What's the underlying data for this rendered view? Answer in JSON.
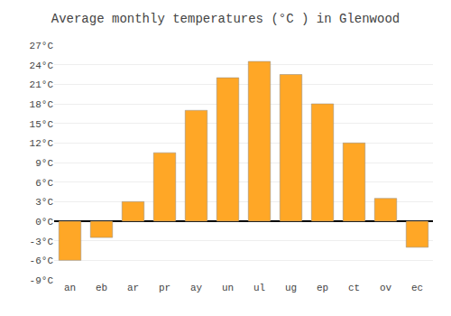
{
  "chart_data": {
    "type": "bar",
    "title": "Average monthly temperatures (°C ) in Glenwood",
    "categories": [
      "an",
      "eb",
      "ar",
      "pr",
      "ay",
      "un",
      "ul",
      "ug",
      "ep",
      "ct",
      "ov",
      "ec"
    ],
    "values": [
      -6.0,
      -2.5,
      3.0,
      10.5,
      17.0,
      22.0,
      24.5,
      22.5,
      18.0,
      12.0,
      3.5,
      -4.0
    ],
    "color": "#FFA726",
    "ylim": [
      -9,
      27
    ],
    "yticks": [
      {
        "value": -9,
        "label": "-9°C"
      },
      {
        "value": -6,
        "label": "-6°C"
      },
      {
        "value": -3,
        "label": "-3°C"
      },
      {
        "value": 0,
        "label": "0°C"
      },
      {
        "value": 3,
        "label": "3°C"
      },
      {
        "value": 6,
        "label": "6°C"
      },
      {
        "value": 9,
        "label": "9°C"
      },
      {
        "value": 12,
        "label": "12°C"
      },
      {
        "value": 15,
        "label": "15°C"
      },
      {
        "value": 18,
        "label": "18°C"
      },
      {
        "value": 21,
        "label": "21°C"
      },
      {
        "value": 24,
        "label": "24°C"
      },
      {
        "value": 27,
        "label": "27°C"
      }
    ],
    "grid": true
  }
}
